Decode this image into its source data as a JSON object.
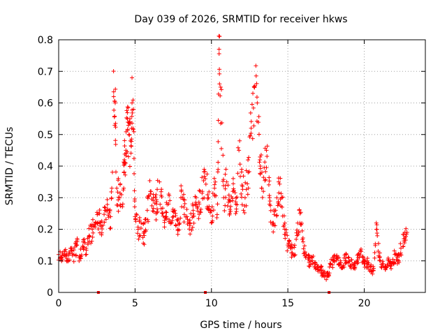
{
  "chart_data": {
    "type": "scatter",
    "title": "Day 039 of 2026, SRMTID for receiver hkws",
    "xlabel": "GPS time / hours",
    "ylabel": "SRMTID / TECUs",
    "xlim": [
      0,
      24
    ],
    "ylim": [
      0,
      0.8
    ],
    "xticks": [
      0,
      5,
      10,
      15,
      20
    ],
    "xtick_labels": [
      "0",
      "5",
      "10",
      "15",
      "20"
    ],
    "yticks": [
      0,
      0.1,
      0.2,
      0.3,
      0.4,
      0.5,
      0.6,
      0.7,
      0.8
    ],
    "ytick_labels": [
      "0",
      "0.1",
      "0.2",
      "0.3",
      "0.4",
      "0.5",
      "0.6",
      "0.7",
      "0.8"
    ],
    "grid": true,
    "marker": "plus",
    "series_color": "#ff0000",
    "zero_flags_x": [
      2.6,
      9.6,
      17.7
    ],
    "series": [
      {
        "name": "SRMTID",
        "x": [
          0.0,
          0.2,
          0.4,
          0.6,
          0.8,
          1.0,
          1.2,
          1.4,
          1.6,
          1.8,
          2.0,
          2.2,
          2.4,
          2.6,
          2.8,
          3.0,
          3.2,
          3.4,
          3.6,
          3.7,
          3.8,
          4.0,
          4.2,
          4.3,
          4.4,
          4.5,
          4.6,
          4.7,
          4.8,
          4.9,
          5.0,
          5.2,
          5.4,
          5.6,
          5.8,
          6.0,
          6.2,
          6.4,
          6.6,
          6.8,
          7.0,
          7.2,
          7.4,
          7.6,
          7.8,
          8.0,
          8.2,
          8.4,
          8.6,
          8.8,
          9.0,
          9.2,
          9.4,
          9.6,
          9.8,
          10.0,
          10.2,
          10.4,
          10.5,
          10.6,
          10.8,
          11.0,
          11.2,
          11.4,
          11.6,
          11.8,
          12.0,
          12.2,
          12.4,
          12.6,
          12.8,
          13.0,
          13.2,
          13.4,
          13.6,
          13.8,
          14.0,
          14.2,
          14.4,
          14.6,
          14.8,
          15.0,
          15.2,
          15.4,
          15.6,
          15.8,
          16.0,
          16.2,
          16.4,
          16.6,
          16.8,
          17.0,
          17.2,
          17.4,
          17.6,
          17.8,
          18.0,
          18.2,
          18.4,
          18.6,
          18.8,
          19.0,
          19.2,
          19.4,
          19.6,
          19.8,
          20.0,
          20.2,
          20.4,
          20.6,
          20.8,
          21.0,
          21.2,
          21.4,
          21.6,
          21.8,
          22.0,
          22.2,
          22.4,
          22.6,
          22.8
        ],
        "y": [
          0.12,
          0.11,
          0.13,
          0.1,
          0.14,
          0.12,
          0.15,
          0.11,
          0.16,
          0.14,
          0.18,
          0.2,
          0.22,
          0.25,
          0.21,
          0.27,
          0.26,
          0.24,
          0.62,
          0.6,
          0.33,
          0.3,
          0.28,
          0.42,
          0.45,
          0.55,
          0.5,
          0.48,
          0.6,
          0.58,
          0.24,
          0.2,
          0.22,
          0.18,
          0.26,
          0.32,
          0.3,
          0.28,
          0.35,
          0.25,
          0.24,
          0.28,
          0.22,
          0.26,
          0.2,
          0.3,
          0.27,
          0.24,
          0.22,
          0.26,
          0.3,
          0.28,
          0.32,
          0.36,
          0.3,
          0.22,
          0.33,
          0.28,
          0.77,
          0.65,
          0.3,
          0.35,
          0.25,
          0.32,
          0.28,
          0.45,
          0.34,
          0.3,
          0.38,
          0.52,
          0.65,
          0.6,
          0.4,
          0.32,
          0.45,
          0.3,
          0.22,
          0.26,
          0.35,
          0.3,
          0.2,
          0.15,
          0.14,
          0.12,
          0.18,
          0.25,
          0.16,
          0.12,
          0.1,
          0.11,
          0.09,
          0.08,
          0.07,
          0.06,
          0.05,
          0.09,
          0.1,
          0.11,
          0.09,
          0.08,
          0.12,
          0.1,
          0.09,
          0.08,
          0.11,
          0.13,
          0.09,
          0.1,
          0.08,
          0.07,
          0.2,
          0.11,
          0.09,
          0.08,
          0.1,
          0.09,
          0.12,
          0.1,
          0.14,
          0.17,
          0.19
        ]
      }
    ]
  }
}
